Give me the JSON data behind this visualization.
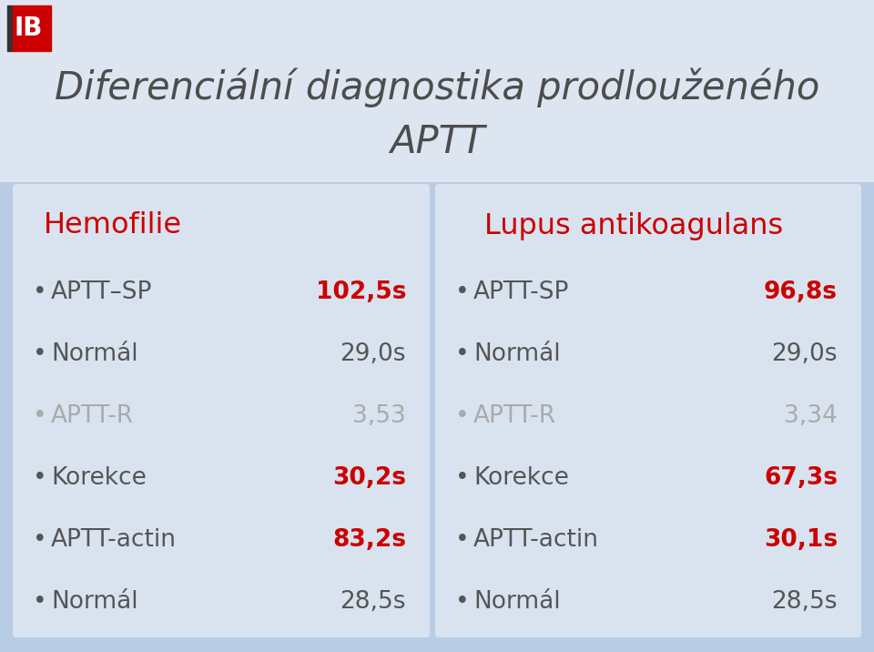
{
  "title_line1": "Diferenciální diagnostika prodlouženého",
  "title_line2": "APTT",
  "title_color": "#4d4d4d",
  "title_fontsize": 30,
  "bg_color": "#b8cce4",
  "title_banner_color": "#e8eef5",
  "panel_bg": "#d9e3f0",
  "left_header": "Hemofilie",
  "right_header": "Lupus antikoagulans",
  "header_color": "#cc0000",
  "left_items": [
    {
      "label": "APTT–SP",
      "value": "102,5s",
      "label_color": "#555555",
      "value_color": "#cc0000",
      "bold_value": true
    },
    {
      "label": "Normál",
      "value": "29,0s",
      "label_color": "#555555",
      "value_color": "#555555",
      "bold_value": false
    },
    {
      "label": "APTT-R",
      "value": "3,53",
      "label_color": "#aaaaaa",
      "value_color": "#aaaaaa",
      "bold_value": false
    },
    {
      "label": "Korekce",
      "value": "30,2s",
      "label_color": "#555555",
      "value_color": "#cc0000",
      "bold_value": true
    },
    {
      "label": "APTT-actin",
      "value": "83,2s",
      "label_color": "#555555",
      "value_color": "#cc0000",
      "bold_value": true
    },
    {
      "label": "Normál",
      "value": "28,5s",
      "label_color": "#555555",
      "value_color": "#555555",
      "bold_value": false
    }
  ],
  "right_items": [
    {
      "label": "APTT-SP",
      "value": "96,8s",
      "label_color": "#555555",
      "value_color": "#cc0000",
      "bold_value": true
    },
    {
      "label": "Normál",
      "value": "29,0s",
      "label_color": "#555555",
      "value_color": "#555555",
      "bold_value": false
    },
    {
      "label": "APTT-R",
      "value": "3,34",
      "label_color": "#aaaaaa",
      "value_color": "#aaaaaa",
      "bold_value": false
    },
    {
      "label": "Korekce",
      "value": "67,3s",
      "label_color": "#555555",
      "value_color": "#cc0000",
      "bold_value": true
    },
    {
      "label": "APTT-actin",
      "value": "30,1s",
      "label_color": "#555555",
      "value_color": "#cc0000",
      "bold_value": true
    },
    {
      "label": "Normál",
      "value": "28,5s",
      "label_color": "#555555",
      "value_color": "#555555",
      "bold_value": false
    }
  ],
  "item_fontsize": 19,
  "header_fontsize": 23,
  "bullet": "•",
  "logo_bar_color": "#cc0000",
  "logo_text_color": "#1a1a1a"
}
